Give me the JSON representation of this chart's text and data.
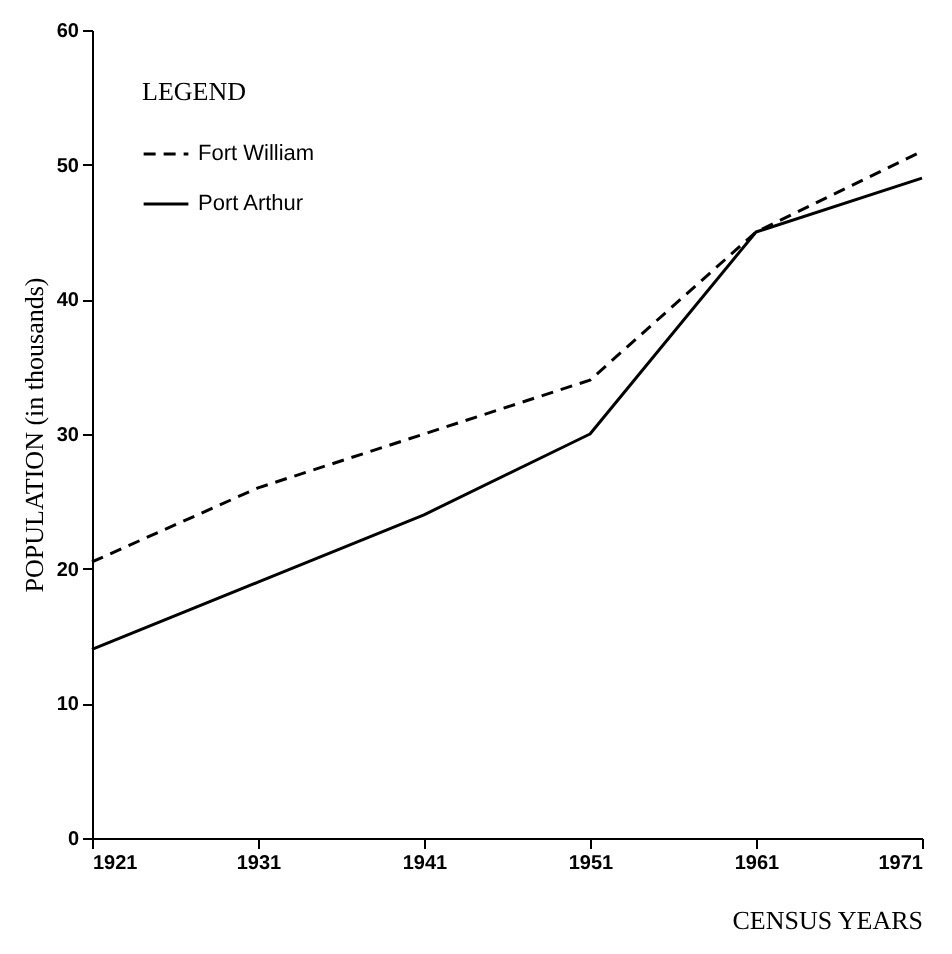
{
  "chart_data": {
    "type": "line",
    "xlabel": "CENSUS YEARS",
    "ylabel": "POPULATION (in thousands)",
    "legend_title": "LEGEND",
    "x": [
      1921,
      1931,
      1941,
      1951,
      1961,
      1971
    ],
    "series": [
      {
        "name": "Fort William",
        "color": "#000000",
        "line_style": "dashed",
        "values": [
          20.5,
          26,
          30,
          34,
          45,
          51
        ]
      },
      {
        "name": "Port Arthur",
        "color": "#000000",
        "line_style": "solid",
        "values": [
          14,
          19,
          24,
          30,
          45,
          49
        ]
      }
    ],
    "xlim": [
      1921,
      1971
    ],
    "xticks": [
      1921,
      1931,
      1941,
      1951,
      1961,
      1971
    ],
    "ylim": [
      0,
      60
    ],
    "yticks": [
      0,
      10,
      20,
      30,
      40,
      50,
      60
    ],
    "grid": false,
    "legend": "top left",
    "marker": "none"
  }
}
